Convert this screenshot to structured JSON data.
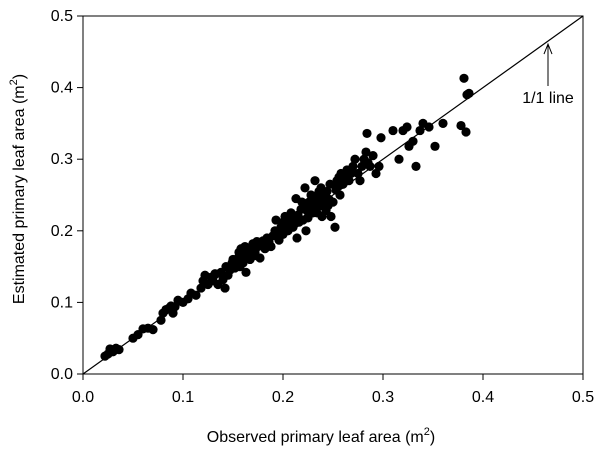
{
  "chart_data": {
    "type": "scatter",
    "xlabel": "Observed primary leaf area (m",
    "xlabel_sup": "2",
    "xlabel_end": ")",
    "ylabel": "Estimated primary leaf area (m",
    "ylabel_sup": "2",
    "ylabel_end": ")",
    "xlim": [
      0.0,
      0.5
    ],
    "ylim": [
      0.0,
      0.5
    ],
    "xticks": [
      "0.0",
      "0.1",
      "0.2",
      "0.3",
      "0.4",
      "0.5"
    ],
    "yticks": [
      "0.0",
      "0.1",
      "0.2",
      "0.3",
      "0.4",
      "0.5"
    ],
    "grid": false,
    "reference_line": {
      "label": "1/1 line",
      "from": [
        0.0,
        0.0
      ],
      "to": [
        0.5,
        0.5
      ]
    },
    "annotation_arrow_x": 0.465,
    "point_color": "#000000",
    "points": [
      [
        0.022,
        0.025
      ],
      [
        0.025,
        0.028
      ],
      [
        0.027,
        0.035
      ],
      [
        0.03,
        0.031
      ],
      [
        0.033,
        0.036
      ],
      [
        0.036,
        0.034
      ],
      [
        0.05,
        0.05
      ],
      [
        0.055,
        0.055
      ],
      [
        0.06,
        0.063
      ],
      [
        0.065,
        0.064
      ],
      [
        0.07,
        0.062
      ],
      [
        0.078,
        0.075
      ],
      [
        0.08,
        0.085
      ],
      [
        0.083,
        0.09
      ],
      [
        0.086,
        0.092
      ],
      [
        0.088,
        0.095
      ],
      [
        0.09,
        0.085
      ],
      [
        0.092,
        0.094
      ],
      [
        0.095,
        0.103
      ],
      [
        0.1,
        0.1
      ],
      [
        0.105,
        0.105
      ],
      [
        0.108,
        0.113
      ],
      [
        0.113,
        0.11
      ],
      [
        0.118,
        0.12
      ],
      [
        0.12,
        0.13
      ],
      [
        0.122,
        0.138
      ],
      [
        0.125,
        0.125
      ],
      [
        0.128,
        0.135
      ],
      [
        0.13,
        0.13
      ],
      [
        0.132,
        0.14
      ],
      [
        0.135,
        0.125
      ],
      [
        0.138,
        0.142
      ],
      [
        0.14,
        0.132
      ],
      [
        0.142,
        0.12
      ],
      [
        0.143,
        0.15
      ],
      [
        0.145,
        0.138
      ],
      [
        0.147,
        0.145
      ],
      [
        0.149,
        0.155
      ],
      [
        0.15,
        0.16
      ],
      [
        0.152,
        0.148
      ],
      [
        0.153,
        0.158
      ],
      [
        0.155,
        0.162
      ],
      [
        0.156,
        0.17
      ],
      [
        0.157,
        0.15
      ],
      [
        0.158,
        0.175
      ],
      [
        0.16,
        0.155
      ],
      [
        0.161,
        0.165
      ],
      [
        0.162,
        0.178
      ],
      [
        0.163,
        0.142
      ],
      [
        0.165,
        0.168
      ],
      [
        0.166,
        0.172
      ],
      [
        0.167,
        0.16
      ],
      [
        0.168,
        0.175
      ],
      [
        0.17,
        0.182
      ],
      [
        0.171,
        0.165
      ],
      [
        0.172,
        0.17
      ],
      [
        0.174,
        0.185
      ],
      [
        0.175,
        0.178
      ],
      [
        0.177,
        0.162
      ],
      [
        0.178,
        0.18
      ],
      [
        0.18,
        0.186
      ],
      [
        0.182,
        0.175
      ],
      [
        0.184,
        0.19
      ],
      [
        0.186,
        0.184
      ],
      [
        0.188,
        0.178
      ],
      [
        0.19,
        0.193
      ],
      [
        0.192,
        0.2
      ],
      [
        0.193,
        0.215
      ],
      [
        0.195,
        0.198
      ],
      [
        0.196,
        0.187
      ],
      [
        0.198,
        0.205
      ],
      [
        0.2,
        0.212
      ],
      [
        0.2,
        0.195
      ],
      [
        0.202,
        0.22
      ],
      [
        0.204,
        0.208
      ],
      [
        0.205,
        0.2
      ],
      [
        0.206,
        0.215
      ],
      [
        0.208,
        0.225
      ],
      [
        0.21,
        0.205
      ],
      [
        0.211,
        0.218
      ],
      [
        0.212,
        0.21
      ],
      [
        0.213,
        0.245
      ],
      [
        0.214,
        0.19
      ],
      [
        0.215,
        0.222
      ],
      [
        0.216,
        0.212
      ],
      [
        0.218,
        0.23
      ],
      [
        0.219,
        0.24
      ],
      [
        0.22,
        0.215
      ],
      [
        0.221,
        0.235
      ],
      [
        0.222,
        0.26
      ],
      [
        0.223,
        0.2
      ],
      [
        0.224,
        0.228
      ],
      [
        0.225,
        0.218
      ],
      [
        0.226,
        0.24
      ],
      [
        0.228,
        0.25
      ],
      [
        0.229,
        0.232
      ],
      [
        0.23,
        0.225
      ],
      [
        0.231,
        0.248
      ],
      [
        0.232,
        0.27
      ],
      [
        0.233,
        0.238
      ],
      [
        0.234,
        0.225
      ],
      [
        0.235,
        0.245
      ],
      [
        0.236,
        0.255
      ],
      [
        0.237,
        0.235
      ],
      [
        0.238,
        0.26
      ],
      [
        0.239,
        0.22
      ],
      [
        0.24,
        0.243
      ],
      [
        0.241,
        0.25
      ],
      [
        0.242,
        0.238
      ],
      [
        0.243,
        0.228
      ],
      [
        0.244,
        0.255
      ],
      [
        0.245,
        0.235
      ],
      [
        0.246,
        0.244
      ],
      [
        0.247,
        0.265
      ],
      [
        0.248,
        0.22
      ],
      [
        0.25,
        0.24
      ],
      [
        0.252,
        0.205
      ],
      [
        0.253,
        0.257
      ],
      [
        0.254,
        0.27
      ],
      [
        0.255,
        0.262
      ],
      [
        0.256,
        0.275
      ],
      [
        0.257,
        0.25
      ],
      [
        0.258,
        0.28
      ],
      [
        0.26,
        0.265
      ],
      [
        0.261,
        0.272
      ],
      [
        0.262,
        0.278
      ],
      [
        0.264,
        0.285
      ],
      [
        0.266,
        0.27
      ],
      [
        0.268,
        0.28
      ],
      [
        0.27,
        0.29
      ],
      [
        0.272,
        0.3
      ],
      [
        0.275,
        0.28
      ],
      [
        0.277,
        0.27
      ],
      [
        0.279,
        0.29
      ],
      [
        0.281,
        0.3
      ],
      [
        0.283,
        0.31
      ],
      [
        0.284,
        0.336
      ],
      [
        0.285,
        0.295
      ],
      [
        0.287,
        0.29
      ],
      [
        0.29,
        0.305
      ],
      [
        0.293,
        0.28
      ],
      [
        0.296,
        0.29
      ],
      [
        0.298,
        0.33
      ],
      [
        0.31,
        0.34
      ],
      [
        0.316,
        0.3
      ],
      [
        0.32,
        0.34
      ],
      [
        0.324,
        0.345
      ],
      [
        0.326,
        0.318
      ],
      [
        0.33,
        0.325
      ],
      [
        0.333,
        0.29
      ],
      [
        0.337,
        0.34
      ],
      [
        0.34,
        0.35
      ],
      [
        0.346,
        0.345
      ],
      [
        0.352,
        0.318
      ],
      [
        0.36,
        0.35
      ],
      [
        0.378,
        0.347
      ],
      [
        0.381,
        0.413
      ],
      [
        0.383,
        0.338
      ],
      [
        0.384,
        0.39
      ],
      [
        0.386,
        0.392
      ]
    ]
  }
}
